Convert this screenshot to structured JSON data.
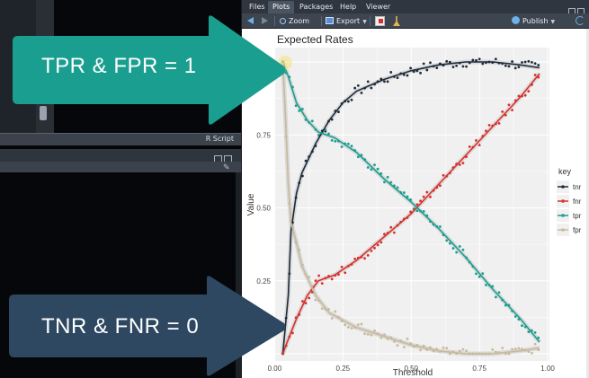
{
  "pane": {
    "tabs": [
      "Files",
      "Plots",
      "Packages",
      "Help",
      "Viewer"
    ],
    "active_tab": "Plots",
    "toolbar": {
      "zoom_label": "Zoom",
      "export_label": "Export",
      "publish_label": "Publish"
    }
  },
  "left": {
    "script_label": "R Script"
  },
  "callouts": {
    "top": {
      "text": "TPR & FPR = 1",
      "color": "#1a9e8f"
    },
    "bottom": {
      "text": "TNR & FNR = 0",
      "color": "#2e4862"
    }
  },
  "chart_data": {
    "type": "line",
    "title": "Expected Rates",
    "xlabel": "Threshold",
    "ylabel": "Value",
    "xlim": [
      0,
      1
    ],
    "ylim": [
      0,
      1
    ],
    "x_ticks": [
      "0.00",
      "0.25",
      "0.50",
      "0.75",
      "1.00"
    ],
    "y_ticks": [
      "0.25",
      "0.50",
      "0.75"
    ],
    "legend_title": "key",
    "legend_position": "right",
    "grid": true,
    "series": [
      {
        "name": "tnr",
        "color": "#1d2b3a",
        "points": [
          [
            0.03,
            0.0
          ],
          [
            0.05,
            0.2
          ],
          [
            0.06,
            0.42
          ],
          [
            0.08,
            0.55
          ],
          [
            0.1,
            0.62
          ],
          [
            0.15,
            0.72
          ],
          [
            0.2,
            0.8
          ],
          [
            0.25,
            0.86
          ],
          [
            0.3,
            0.9
          ],
          [
            0.4,
            0.94
          ],
          [
            0.5,
            0.97
          ],
          [
            0.6,
            0.99
          ],
          [
            0.7,
            1.0
          ],
          [
            0.8,
            1.0
          ],
          [
            0.9,
            0.99
          ],
          [
            0.97,
            0.98
          ]
        ]
      },
      {
        "name": "fnr",
        "color": "#d9302c",
        "points": [
          [
            0.03,
            0.0
          ],
          [
            0.05,
            0.05
          ],
          [
            0.08,
            0.12
          ],
          [
            0.12,
            0.2
          ],
          [
            0.16,
            0.25
          ],
          [
            0.22,
            0.27
          ],
          [
            0.3,
            0.32
          ],
          [
            0.4,
            0.4
          ],
          [
            0.5,
            0.48
          ],
          [
            0.6,
            0.58
          ],
          [
            0.7,
            0.68
          ],
          [
            0.8,
            0.78
          ],
          [
            0.9,
            0.88
          ],
          [
            0.97,
            0.96
          ]
        ]
      },
      {
        "name": "tpr",
        "color": "#1a9e8f",
        "points": [
          [
            0.03,
            1.0
          ],
          [
            0.05,
            0.95
          ],
          [
            0.08,
            0.86
          ],
          [
            0.12,
            0.8
          ],
          [
            0.16,
            0.76
          ],
          [
            0.22,
            0.74
          ],
          [
            0.3,
            0.69
          ],
          [
            0.4,
            0.6
          ],
          [
            0.5,
            0.52
          ],
          [
            0.6,
            0.43
          ],
          [
            0.7,
            0.33
          ],
          [
            0.8,
            0.22
          ],
          [
            0.9,
            0.12
          ],
          [
            0.97,
            0.04
          ]
        ]
      },
      {
        "name": "fpr",
        "color": "#c8b99a",
        "points": [
          [
            0.03,
            1.0
          ],
          [
            0.04,
            0.8
          ],
          [
            0.05,
            0.58
          ],
          [
            0.06,
            0.45
          ],
          [
            0.08,
            0.38
          ],
          [
            0.1,
            0.3
          ],
          [
            0.15,
            0.2
          ],
          [
            0.2,
            0.14
          ],
          [
            0.3,
            0.09
          ],
          [
            0.4,
            0.06
          ],
          [
            0.5,
            0.03
          ],
          [
            0.6,
            0.01
          ],
          [
            0.7,
            0.0
          ],
          [
            0.8,
            0.0
          ],
          [
            0.9,
            0.01
          ],
          [
            0.97,
            0.02
          ]
        ]
      }
    ]
  }
}
